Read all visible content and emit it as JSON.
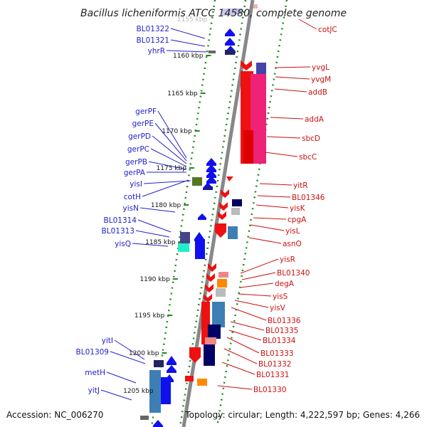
{
  "header": {
    "title": "Bacillus licheniformis ATCC 14580, complete genome",
    "faded_tick": "1155 kbp"
  },
  "footer": {
    "accession": "Accession: NC_006270",
    "summary": "Topology: circular; Length: 4,222,597 bp; Genes: 4,266"
  },
  "colors": {
    "forward_label": "#2222cc",
    "reverse_label": "#cc1111",
    "forward_gene": "#1010ee",
    "reverse_gene": "#ee1111",
    "backbone": "#888888",
    "tick": "#228822"
  },
  "ticks": [
    "1160 kbp",
    "1165 kbp",
    "1170 kbp",
    "1175 kbp",
    "1180 kbp",
    "1185 kbp",
    "1190 kbp",
    "1195 kbp",
    "1200 kbp",
    "1205 kbp"
  ],
  "labels": {
    "left": [
      "BL01322",
      "BL01321",
      "yhrR",
      "gerPF",
      "gerPE",
      "gerPD",
      "gerPC",
      "gerPB",
      "gerPA",
      "yisI",
      "cotH",
      "yisN",
      "BL01314",
      "BL01313",
      "yisQ",
      "yitI",
      "BL01309",
      "metH",
      "yitJ"
    ],
    "right": [
      "cotJC",
      "yvgL",
      "yvgM",
      "addB",
      "addA",
      "sbcD",
      "sbcC",
      "yitR",
      "BL01346",
      "yisK",
      "cpgA",
      "yisL",
      "asnO",
      "yisR",
      "BL01340",
      "degA",
      "yisS",
      "yisV",
      "BL01336",
      "BL01335",
      "BL01334",
      "BL01333",
      "BL01332",
      "BL01331",
      "BL01330"
    ]
  }
}
